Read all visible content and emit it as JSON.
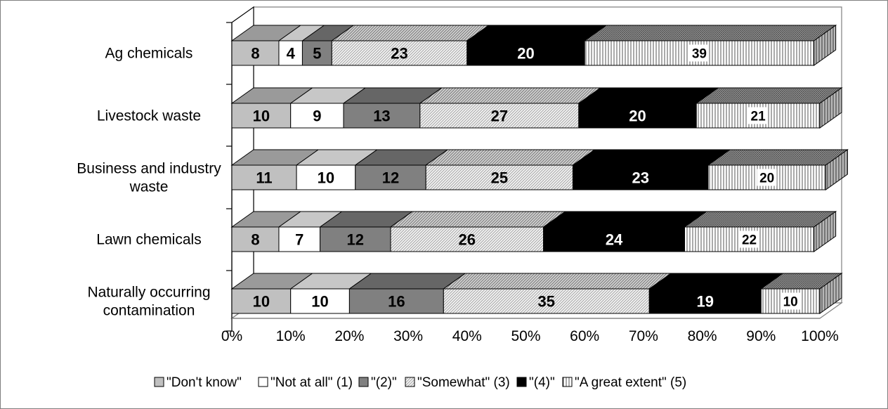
{
  "chart_data": {
    "type": "bar",
    "orientation": "horizontal",
    "stacked": true,
    "percent_stacked": true,
    "three_d": true,
    "categories": [
      "Ag chemicals",
      "Livestock waste",
      "Business and industry waste",
      "Lawn chemicals",
      "Naturally occurring contamination"
    ],
    "category_lines": [
      [
        "Ag chemicals"
      ],
      [
        "Livestock waste"
      ],
      [
        "Business and industry",
        "waste"
      ],
      [
        "Lawn chemicals"
      ],
      [
        "Naturally occurring",
        "contamination"
      ]
    ],
    "series": [
      {
        "name": "\"Don't know\"",
        "values": [
          8,
          10,
          11,
          8,
          10
        ],
        "color": "#c0c0c0",
        "fill": "solid",
        "label_color": "#000000"
      },
      {
        "name": "\"Not at all\" (1)",
        "values": [
          4,
          9,
          10,
          7,
          10
        ],
        "color": "#ffffff",
        "fill": "solid",
        "label_color": "#000000"
      },
      {
        "name": "\"(2)\"",
        "values": [
          5,
          13,
          12,
          12,
          16
        ],
        "color": "#808080",
        "fill": "solid",
        "label_color": "#000000"
      },
      {
        "name": "\"Somewhat\" (3)",
        "values": [
          23,
          27,
          25,
          26,
          35
        ],
        "color": "#e6e6e6",
        "fill": "diagonal",
        "label_color": "#000000"
      },
      {
        "name": "\"(4)\"",
        "values": [
          20,
          20,
          23,
          24,
          19
        ],
        "color": "#000000",
        "fill": "solid",
        "label_color": "#ffffff"
      },
      {
        "name": "\"A great extent\" (5)",
        "values": [
          39,
          21,
          20,
          22,
          10
        ],
        "color": "#ffffff",
        "fill": "vertical",
        "label_color": "#000000"
      }
    ],
    "x_ticks": [
      "0%",
      "10%",
      "20%",
      "30%",
      "40%",
      "50%",
      "60%",
      "70%",
      "80%",
      "90%",
      "100%"
    ],
    "xlim": [
      0,
      100
    ],
    "title": "",
    "xlabel": "",
    "ylabel": "",
    "grid": false,
    "legend_position": "bottom"
  }
}
